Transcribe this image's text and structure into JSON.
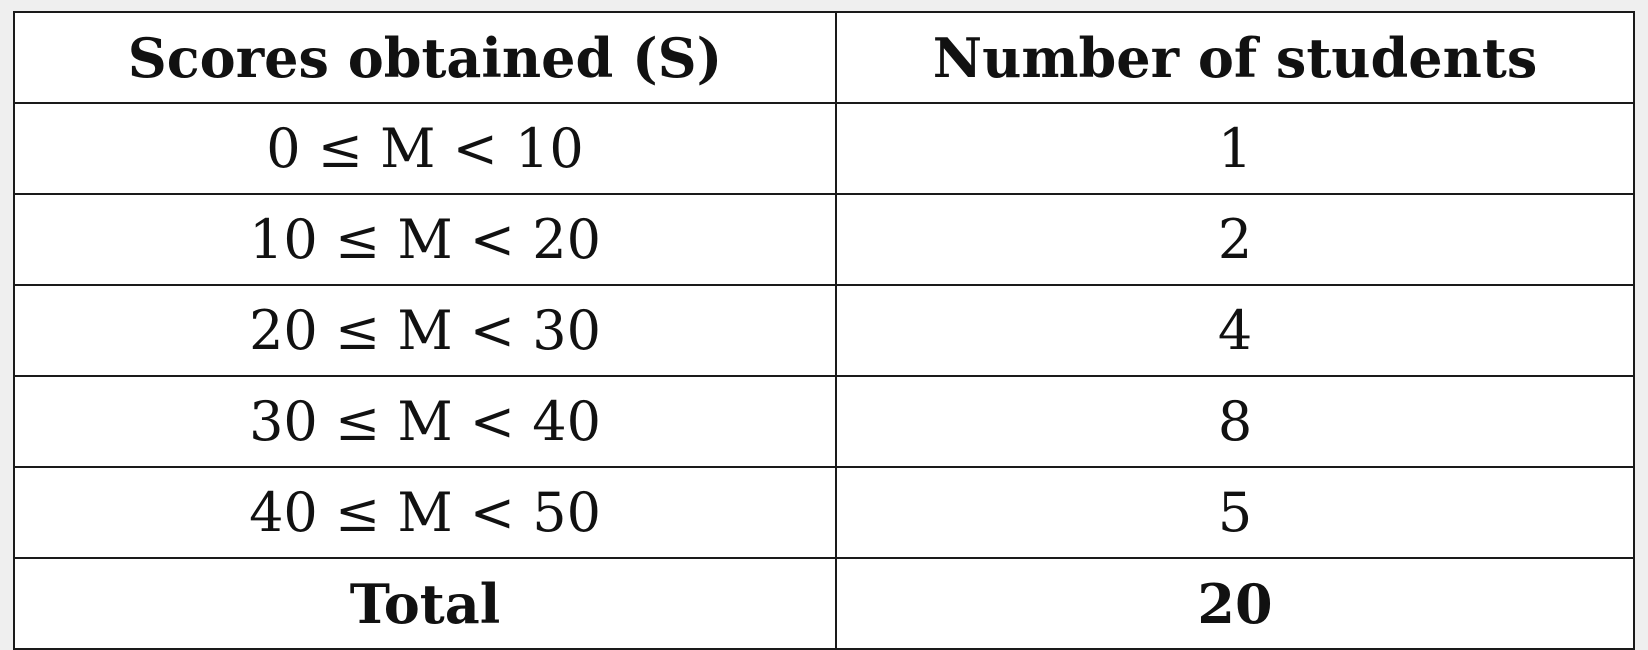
{
  "table": {
    "headers": [
      "Scores obtained (S)",
      "Number of students"
    ],
    "rows": [
      {
        "range": "0 ≤ M < 10",
        "count": "1"
      },
      {
        "range": "10 ≤ M < 20",
        "count": "2"
      },
      {
        "range": "20 ≤ M < 30",
        "count": "4"
      },
      {
        "range": "30 ≤ M < 40",
        "count": "8"
      },
      {
        "range": "40 ≤ M < 50",
        "count": "5"
      }
    ],
    "total": {
      "label": "Total",
      "count": "20"
    }
  },
  "chart_data": {
    "type": "table",
    "columns": [
      "Scores obtained (S)",
      "Number of students"
    ],
    "categories": [
      "0 ≤ M < 10",
      "10 ≤ M < 20",
      "20 ≤ M < 30",
      "30 ≤ M < 40",
      "40 ≤ M < 50"
    ],
    "values": [
      1,
      2,
      4,
      8,
      5
    ],
    "total": 20
  }
}
